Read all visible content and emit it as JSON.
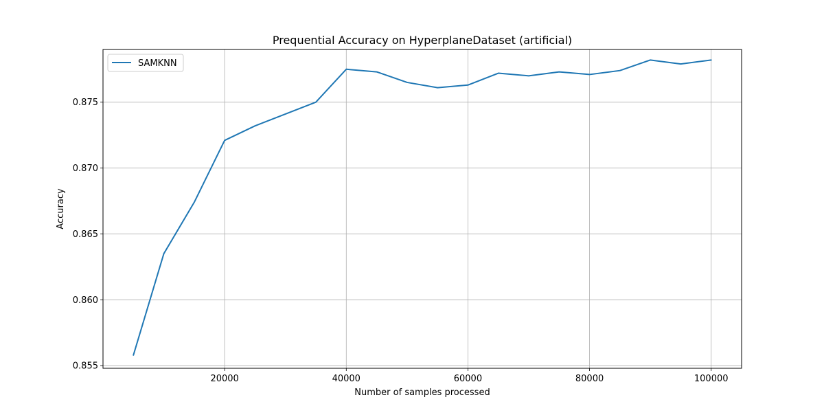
{
  "chart_data": {
    "type": "line",
    "title": "Prequential Accuracy on HyperplaneDataset (artificial)",
    "xlabel": "Number of samples processed",
    "ylabel": "Accuracy",
    "xlim": [
      0,
      105000
    ],
    "ylim": [
      0.8548,
      0.879
    ],
    "x_ticks": [
      20000,
      40000,
      60000,
      80000,
      100000
    ],
    "y_ticks": [
      0.855,
      0.86,
      0.865,
      0.87,
      0.875
    ],
    "x_tick_labels": [
      "20000",
      "40000",
      "60000",
      "80000",
      "100000"
    ],
    "y_tick_labels": [
      "0.855",
      "0.860",
      "0.865",
      "0.870",
      "0.875"
    ],
    "grid": true,
    "legend_position": "upper-left",
    "x": [
      5000,
      10000,
      15000,
      20000,
      25000,
      30000,
      35000,
      40000,
      45000,
      50000,
      55000,
      60000,
      65000,
      70000,
      75000,
      80000,
      85000,
      90000,
      95000,
      100000
    ],
    "series": [
      {
        "name": "SAMKNN",
        "color": "#1f77b4",
        "values": [
          0.8558,
          0.8635,
          0.8674,
          0.8721,
          0.8732,
          0.8741,
          0.875,
          0.8775,
          0.8773,
          0.8765,
          0.8761,
          0.8763,
          0.8772,
          0.877,
          0.8773,
          0.8771,
          0.8774,
          0.8782,
          0.8779,
          0.8782
        ]
      }
    ]
  }
}
